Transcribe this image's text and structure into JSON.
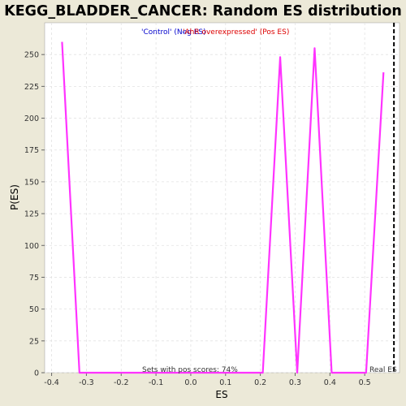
{
  "chart_data": {
    "type": "line",
    "title": "KEGG_BLADDER_CANCER: Random ES distribution",
    "xlabel": "ES",
    "ylabel": "P(ES)",
    "xlim": [
      -0.42,
      0.6
    ],
    "ylim": [
      0,
      275
    ],
    "xticks": [
      "-0.4",
      "-0.3",
      "-0.2",
      "-0.1",
      "0.0",
      "0.1",
      "0.2",
      "0.3",
      "0.4",
      "0.5"
    ],
    "xtick_values": [
      -0.4,
      -0.3,
      -0.2,
      -0.1,
      0.0,
      0.1,
      0.2,
      0.3,
      0.4,
      0.5
    ],
    "yticks": [
      "0",
      "25",
      "50",
      "75",
      "100",
      "125",
      "150",
      "175",
      "200",
      "225",
      "250"
    ],
    "ytick_values": [
      0,
      25,
      50,
      75,
      100,
      125,
      150,
      175,
      200,
      225,
      250
    ],
    "grid": true,
    "series": [
      {
        "color": "#ff33ff",
        "x": [
          -0.37,
          -0.32,
          0.207,
          0.257,
          0.306,
          0.356,
          0.405,
          0.504,
          0.554
        ],
        "y": [
          260,
          0,
          0,
          248,
          0,
          255,
          0,
          0,
          236
        ]
      }
    ],
    "legend": {
      "neg_label": "'Control' (Neg ES)",
      "neg_color": "#0000cc",
      "pos_label": "'AhR overexpressed' (Pos ES)",
      "pos_color": "#dd0000"
    },
    "real_es": {
      "x": 0.584,
      "label": "Real ES",
      "color": "#000000"
    },
    "annotation": "Sets with pos scores: 74%"
  }
}
